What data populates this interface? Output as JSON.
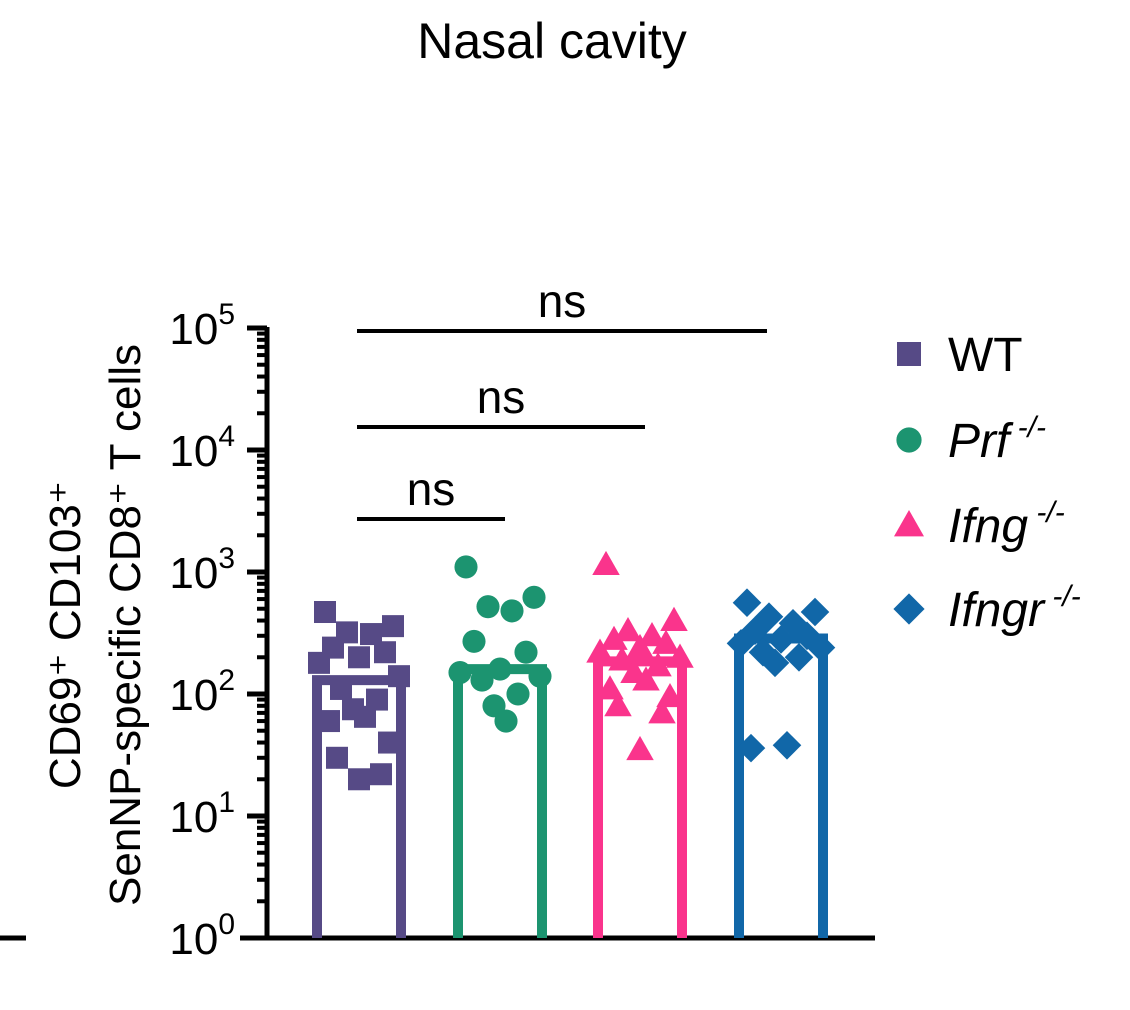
{
  "chart_data": {
    "type": "bar",
    "title": "Nasal cavity",
    "ylabel_line1": "CD69⁺ CD103⁺",
    "ylabel_line2": "SenNP-specific CD8⁺ T cells",
    "yscale": "log",
    "ylim": [
      1,
      100000
    ],
    "y_ticks": [
      {
        "base": "10",
        "exp": "0",
        "value": 1
      },
      {
        "base": "10",
        "exp": "1",
        "value": 10
      },
      {
        "base": "10",
        "exp": "2",
        "value": 100
      },
      {
        "base": "10",
        "exp": "3",
        "value": 1000
      },
      {
        "base": "10",
        "exp": "4",
        "value": 10000
      },
      {
        "base": "10",
        "exp": "5",
        "value": 100000
      }
    ],
    "legend_position": "right",
    "series": [
      {
        "name": "WT",
        "superscript": "",
        "italic": false,
        "color": "#564A86",
        "marker": "square",
        "bar": 130,
        "points": [
          470,
          360,
          320,
          310,
          240,
          220,
          200,
          180,
          140,
          110,
          90,
          75,
          65,
          60,
          40,
          30,
          22,
          20
        ]
      },
      {
        "name": "Prf",
        "superscript": " -/-",
        "italic": true,
        "color": "#1C9470",
        "marker": "circle",
        "bar": 160,
        "points": [
          1100,
          620,
          520,
          480,
          270,
          220,
          160,
          150,
          140,
          130,
          100,
          80,
          60
        ]
      },
      {
        "name": "Ifng",
        "superscript": " -/-",
        "italic": true,
        "color": "#FA348C",
        "marker": "triangle",
        "bar": 185,
        "points": [
          1150,
          400,
          330,
          300,
          280,
          260,
          240,
          220,
          200,
          190,
          170,
          150,
          130,
          110,
          95,
          80,
          70,
          35
        ]
      },
      {
        "name": "Ifngr",
        "superscript": " -/-",
        "italic": true,
        "color": "#1167A8",
        "marker": "diamond",
        "bar": 285,
        "points": [
          560,
          470,
          430,
          380,
          330,
          300,
          280,
          260,
          240,
          220,
          200,
          180,
          38,
          36
        ]
      }
    ],
    "comparisons": [
      {
        "from": 0,
        "to": 1,
        "label": "ns"
      },
      {
        "from": 0,
        "to": 2,
        "label": "ns"
      },
      {
        "from": 0,
        "to": 3,
        "label": "ns"
      }
    ]
  }
}
